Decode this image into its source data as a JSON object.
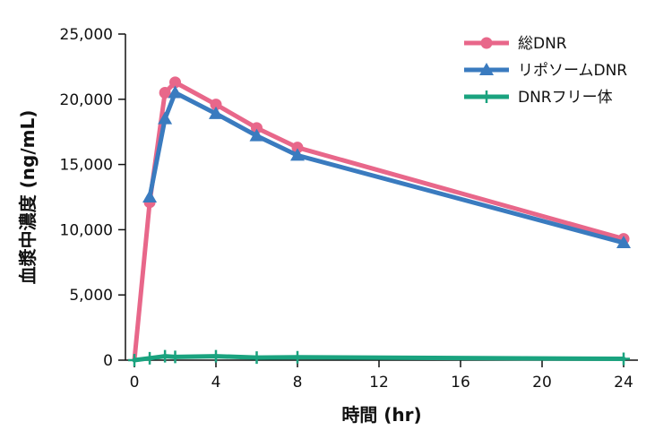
{
  "chart_data": {
    "type": "line",
    "xlabel": "時間 (hr)",
    "ylabel": "血漿中濃度 (ng/mL)",
    "xlim": [
      0,
      24
    ],
    "ylim": [
      0,
      25000
    ],
    "x_ticks": [
      0,
      4,
      8,
      12,
      16,
      20,
      24
    ],
    "x_tick_labels": [
      "0",
      "4",
      "8",
      "12",
      "16",
      "20",
      "24"
    ],
    "y_ticks": [
      0,
      5000,
      10000,
      15000,
      20000,
      25000
    ],
    "y_tick_labels": [
      "0",
      "5,000",
      "10,000",
      "15,000",
      "20,000",
      "25,000"
    ],
    "grid": false,
    "legend_position": "top-right",
    "series": [
      {
        "name": "総DNR",
        "color": "#e8678a",
        "marker": "circle",
        "points": [
          [
            0,
            0
          ],
          [
            0.75,
            12100
          ],
          [
            1.5,
            20500
          ],
          [
            2,
            21300
          ],
          [
            4,
            19600
          ],
          [
            6,
            17800
          ],
          [
            8,
            16300
          ],
          [
            24,
            9300
          ]
        ]
      },
      {
        "name": "リポソームDNR",
        "color": "#3a7bbf",
        "marker": "triangle",
        "points": [
          [
            0.75,
            12500
          ],
          [
            1.5,
            18500
          ],
          [
            2,
            20500
          ],
          [
            4,
            18900
          ],
          [
            6,
            17200
          ],
          [
            8,
            15700
          ],
          [
            24,
            9000
          ]
        ]
      },
      {
        "name": "DNRフリー体",
        "color": "#1aa37f",
        "marker": "plus",
        "points": [
          [
            0,
            0
          ],
          [
            0.75,
            150
          ],
          [
            1.5,
            300
          ],
          [
            2,
            250
          ],
          [
            4,
            300
          ],
          [
            6,
            200
          ],
          [
            8,
            220
          ],
          [
            24,
            100
          ]
        ]
      }
    ]
  }
}
